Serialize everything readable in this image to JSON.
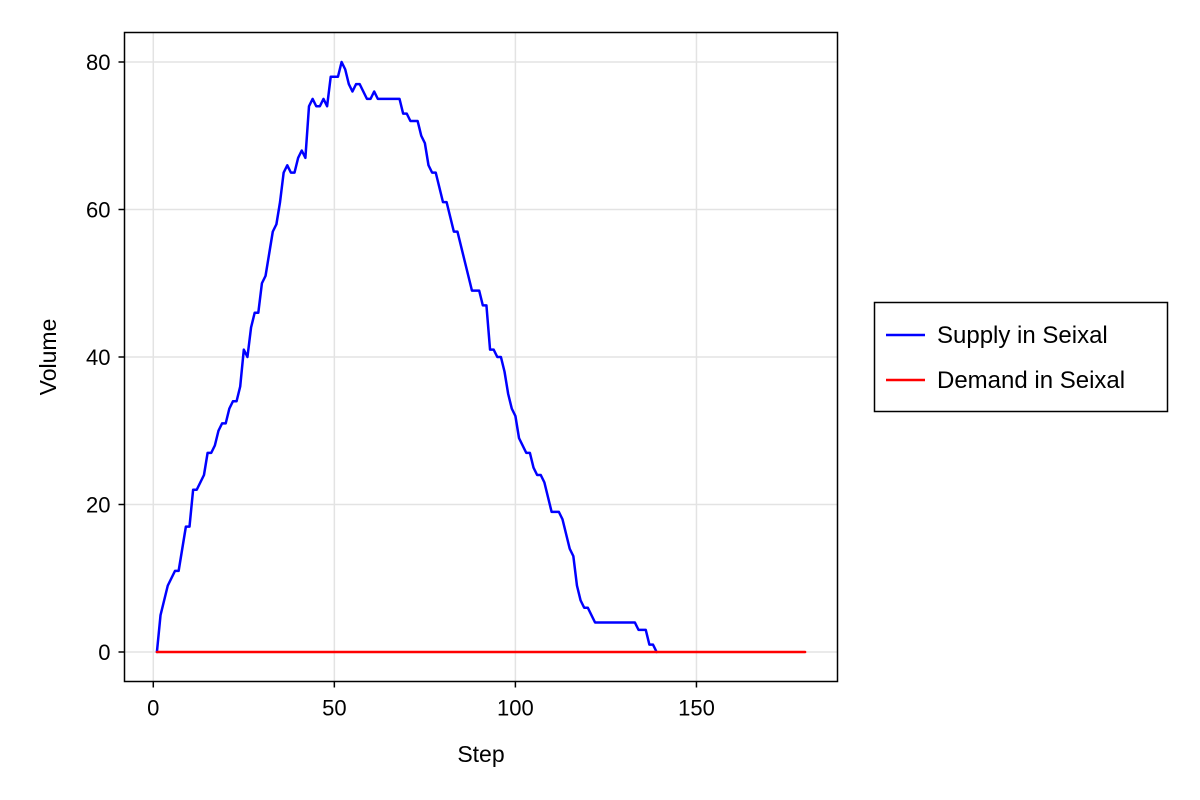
{
  "chart_data": {
    "type": "line",
    "title": "",
    "xlabel": "Step",
    "ylabel": "Volume",
    "xlim": [
      -7.95,
      188.95
    ],
    "ylim": [
      -4,
      84
    ],
    "xticks": [
      0,
      50,
      100,
      150
    ],
    "yticks": [
      0,
      20,
      40,
      60,
      80
    ],
    "grid": true,
    "legend_position": "right",
    "series": [
      {
        "name": "Supply in Seixal",
        "color": "#0000ff",
        "x": [
          1,
          2,
          3,
          4,
          5,
          6,
          7,
          8,
          9,
          10,
          11,
          12,
          13,
          14,
          15,
          16,
          17,
          18,
          19,
          20,
          21,
          22,
          23,
          24,
          25,
          26,
          27,
          28,
          29,
          30,
          31,
          32,
          33,
          34,
          35,
          36,
          37,
          38,
          39,
          40,
          41,
          42,
          43,
          44,
          45,
          46,
          47,
          48,
          49,
          50,
          51,
          52,
          53,
          54,
          55,
          56,
          57,
          58,
          59,
          60,
          61,
          62,
          63,
          64,
          65,
          66,
          67,
          68,
          69,
          70,
          71,
          72,
          73,
          74,
          75,
          76,
          77,
          78,
          79,
          80,
          81,
          82,
          83,
          84,
          85,
          86,
          87,
          88,
          89,
          90,
          91,
          92,
          93,
          94,
          95,
          96,
          97,
          98,
          99,
          100,
          101,
          102,
          103,
          104,
          105,
          106,
          107,
          108,
          109,
          110,
          111,
          112,
          113,
          114,
          115,
          116,
          117,
          118,
          119,
          120,
          121,
          122,
          123,
          124,
          125,
          126,
          127,
          128,
          129,
          130,
          131,
          132,
          133,
          134,
          135,
          136,
          137,
          138,
          139
        ],
        "y": [
          0,
          5,
          7,
          9,
          10,
          11,
          11,
          14,
          17,
          17,
          22,
          22,
          23,
          24,
          27,
          27,
          28,
          30,
          31,
          31,
          33,
          34,
          34,
          36,
          41,
          40,
          44,
          46,
          46,
          50,
          51,
          54,
          57,
          58,
          61,
          65,
          66,
          65,
          65,
          67,
          68,
          67,
          74,
          75,
          74,
          74,
          75,
          74,
          78,
          78,
          78,
          80,
          79,
          77,
          76,
          77,
          77,
          76,
          75,
          75,
          76,
          75,
          75,
          75,
          75,
          75,
          75,
          75,
          73,
          73,
          72,
          72,
          72,
          70,
          69,
          66,
          65,
          65,
          63,
          61,
          61,
          59,
          57,
          57,
          55,
          53,
          51,
          49,
          49,
          49,
          47,
          47,
          41,
          41,
          40,
          40,
          38,
          35,
          33,
          32,
          29,
          28,
          27,
          27,
          25,
          24,
          24,
          23,
          21,
          19,
          19,
          19,
          18,
          16,
          14,
          13,
          9,
          7,
          6,
          6,
          5,
          4,
          4,
          4,
          4,
          4,
          4,
          4,
          4,
          4,
          4,
          4,
          4,
          3,
          3,
          3,
          1,
          1,
          0
        ]
      },
      {
        "name": "Demand in Seixal",
        "color": "#ff0000",
        "x": [
          1,
          180
        ],
        "y": [
          0,
          0
        ]
      }
    ]
  }
}
